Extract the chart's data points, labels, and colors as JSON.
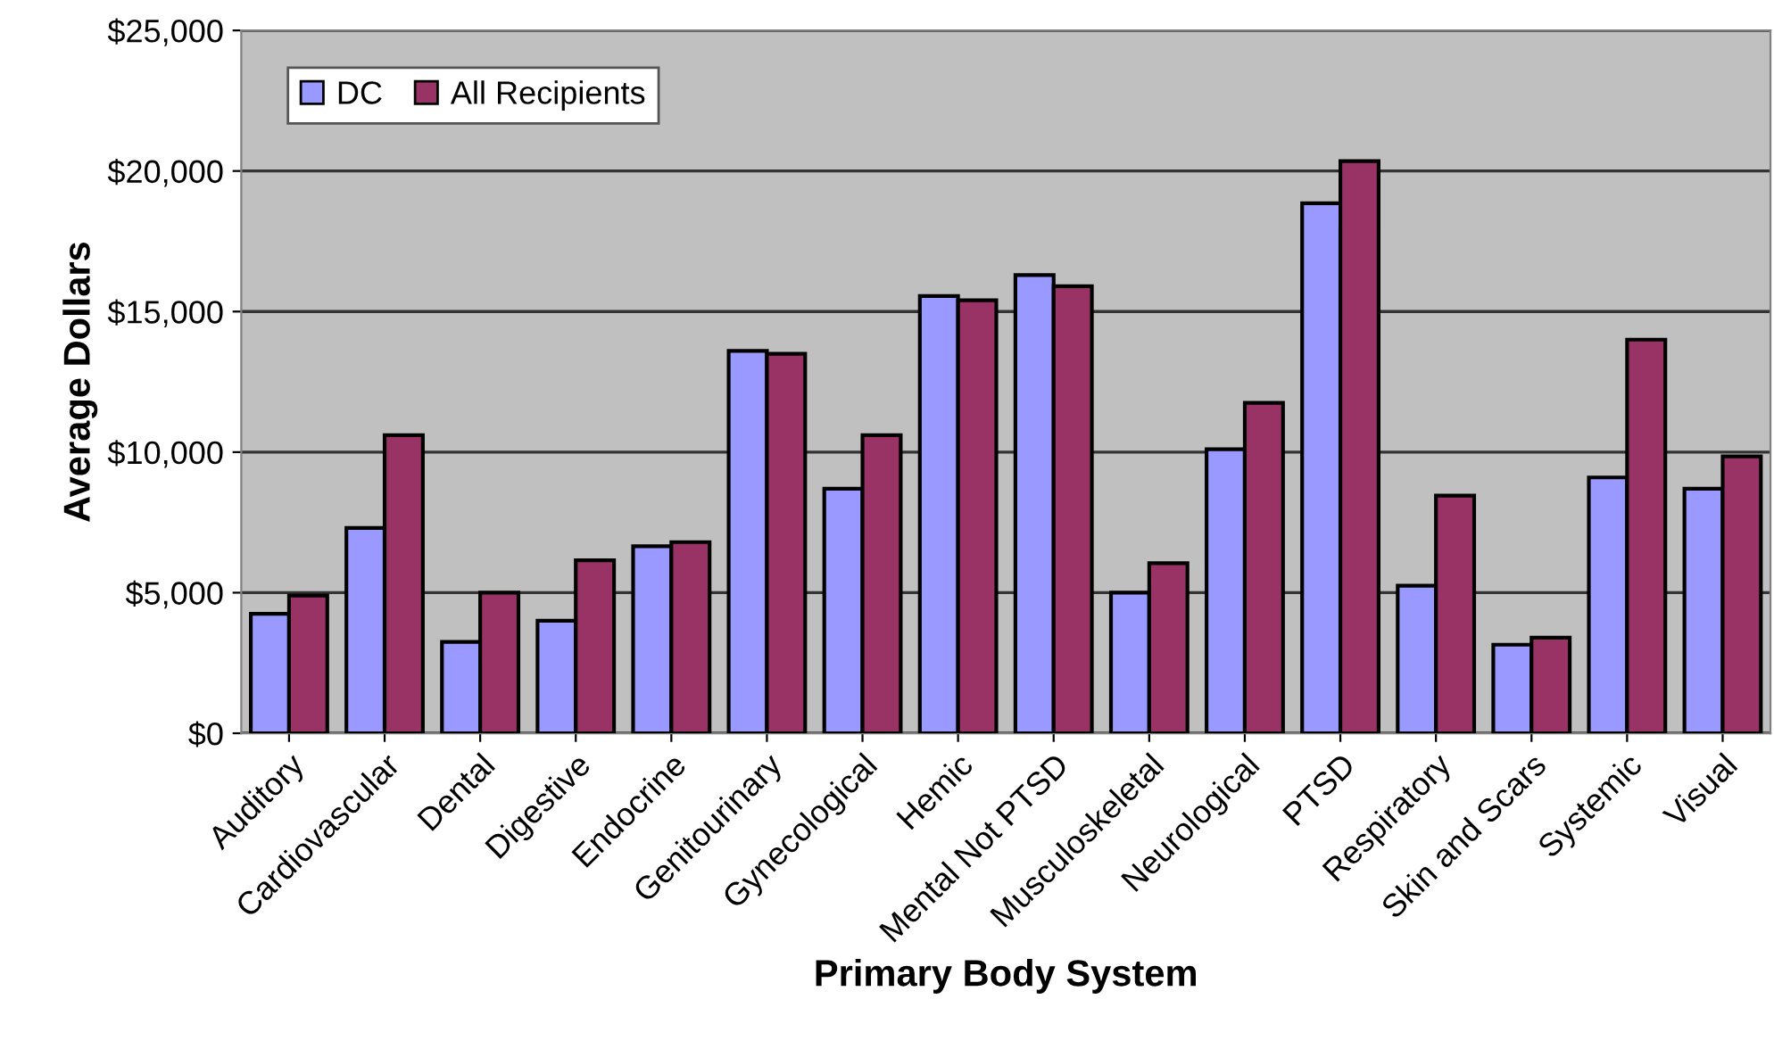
{
  "chart_data": {
    "type": "bar",
    "xlabel": "Primary Body System",
    "ylabel": "Average Dollars",
    "categories": [
      "Auditory",
      "Cardiovascular",
      "Dental",
      "Digestive",
      "Endocrine",
      "Genitourinary",
      "Gynecological",
      "Hemic",
      "Mental Not PTSD",
      "Musculoskeletal",
      "Neurological",
      "PTSD",
      "Respiratory",
      "Skin and Scars",
      "Systemic",
      "Visual"
    ],
    "series": [
      {
        "name": "DC",
        "color": "#9999ff",
        "values": [
          4250,
          7300,
          3250,
          4000,
          6650,
          13600,
          8700,
          15550,
          16300,
          5000,
          10100,
          18850,
          5250,
          3150,
          9100,
          8700
        ]
      },
      {
        "name": "All Recipients",
        "color": "#993366",
        "values": [
          4900,
          10600,
          5000,
          6150,
          6800,
          13500,
          10600,
          15400,
          15900,
          6050,
          11750,
          20350,
          8450,
          3400,
          14000,
          9850
        ]
      }
    ],
    "ylim": [
      0,
      25000
    ],
    "yticks": [
      {
        "value": 0,
        "label": "$0"
      },
      {
        "value": 5000,
        "label": "$5,000"
      },
      {
        "value": 10000,
        "label": "$10,000"
      },
      {
        "value": 15000,
        "label": "$15,000"
      },
      {
        "value": 20000,
        "label": "$20,000"
      },
      {
        "value": 25000,
        "label": "$25,000"
      }
    ],
    "grid": "y",
    "legend": "top left"
  }
}
